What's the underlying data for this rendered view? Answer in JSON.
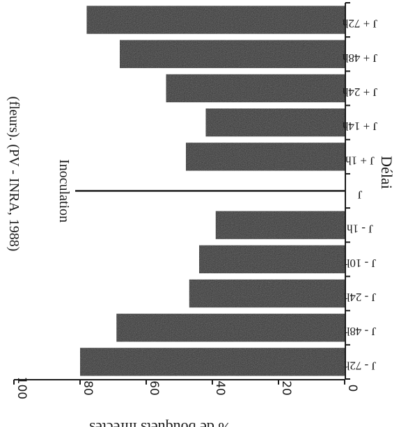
{
  "chart_data": {
    "type": "bar",
    "title": "(fleurs). (PV - INRA, 1988)",
    "xlabel": "Délai",
    "ylabel": "% de bouquets infectés",
    "ylim": [
      0,
      100
    ],
    "yticks": [
      0,
      20,
      40,
      60,
      80,
      100
    ],
    "categories": [
      "J - 72h",
      "J - 48h",
      "J - 24h",
      "J - 10h",
      "J - 1h",
      "J",
      "J + 1h",
      "J + 14h",
      "J + 24h",
      "J + 48h",
      "J + 72h"
    ],
    "values": [
      80,
      69,
      47,
      44,
      39,
      null,
      48,
      42,
      54,
      68,
      78
    ],
    "annotation": {
      "text": "Inoculation",
      "category": "J"
    },
    "grid": false,
    "orientation": "rotated 180°",
    "colors": {
      "bar": "#2e2e2e",
      "axis": "#1a1a1a",
      "marker": "#1a1a1a"
    }
  }
}
